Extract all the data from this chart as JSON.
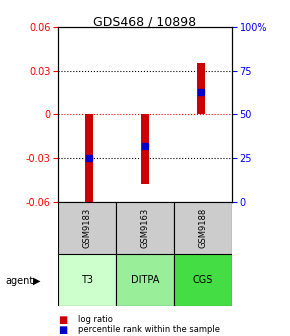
{
  "title": "GDS468 / 10898",
  "samples": [
    "GSM9183",
    "GSM9163",
    "GSM9188"
  ],
  "agents": [
    "T3",
    "DITPA",
    "CGS"
  ],
  "log_ratios": [
    -0.063,
    -0.048,
    0.035
  ],
  "percentile_ranks": [
    -0.03,
    -0.022,
    0.015
  ],
  "ylim_left": [
    -0.06,
    0.06
  ],
  "ylim_right": [
    0,
    100
  ],
  "yticks_left": [
    -0.06,
    -0.03,
    0,
    0.03,
    0.06
  ],
  "yticks_right": [
    0,
    25,
    50,
    75,
    100
  ],
  "bar_color": "#cc0000",
  "blue_color": "#0000cc",
  "bar_width": 0.15,
  "agent_colors": [
    "#ccffcc",
    "#99ee99",
    "#44dd44"
  ],
  "gray_color": "#cccccc",
  "legend_red": "#cc0000",
  "legend_blue": "#0000cc"
}
